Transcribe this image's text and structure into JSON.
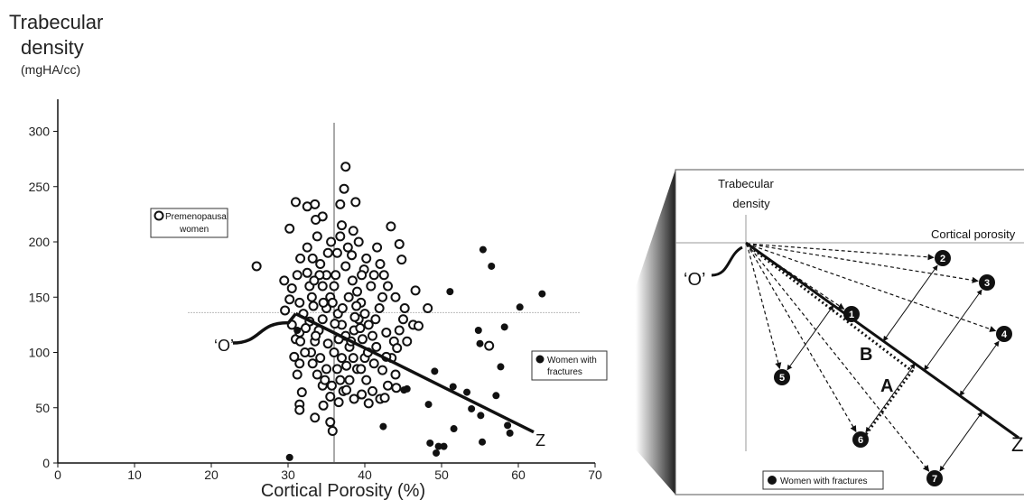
{
  "chart_data": [
    {
      "type": "scatter",
      "ylabel_line1": "Trabecular",
      "ylabel_line2": "density",
      "ylabel_unit": "(mgHA/cc)",
      "xlabel": "Cortical Porosity (%)",
      "xlim": [
        0,
        70
      ],
      "ylim": [
        0,
        320
      ],
      "xticks": [
        "0",
        "10",
        "20",
        "30",
        "40",
        "50",
        "60",
        "70"
      ],
      "yticks": [
        "0",
        "50",
        "100",
        "150",
        "200",
        "250",
        "300"
      ],
      "ref_x": 36,
      "ref_y": 136,
      "origin_label": "‘O’",
      "end_label": "Z",
      "trend_line": [
        [
          31,
          135
        ],
        [
          62,
          28
        ]
      ],
      "series": [
        {
          "name": "Premenopausal women",
          "legend_line1": "Premenopausal",
          "legend_line2": "women",
          "marker": "open-circle",
          "points": [
            [
              33.5,
              234
            ],
            [
              32.5,
              232
            ],
            [
              34.5,
              223
            ],
            [
              33.6,
              220
            ],
            [
              31,
              236
            ],
            [
              36.8,
              234
            ],
            [
              37.3,
              248
            ],
            [
              37.5,
              268
            ],
            [
              38.8,
              236
            ],
            [
              30.2,
              212
            ],
            [
              25.9,
              178
            ],
            [
              29.5,
              165
            ],
            [
              30.2,
              148
            ],
            [
              29.6,
              138
            ],
            [
              30.5,
              125
            ],
            [
              31,
              112
            ],
            [
              30.8,
              96
            ],
            [
              31.5,
              90
            ],
            [
              31.2,
              80
            ],
            [
              31.8,
              64
            ],
            [
              31.5,
              53
            ],
            [
              33.5,
              41
            ],
            [
              35.5,
              37
            ],
            [
              35.8,
              29
            ],
            [
              33,
              100
            ],
            [
              33.5,
              110
            ],
            [
              34,
              120
            ],
            [
              34.5,
              130
            ],
            [
              35,
              140
            ],
            [
              35.5,
              150
            ],
            [
              36,
              160
            ],
            [
              36.2,
              170
            ],
            [
              34.2,
              180
            ],
            [
              35.2,
              190
            ],
            [
              33.2,
              185
            ],
            [
              32.5,
              172
            ],
            [
              32.8,
              160
            ],
            [
              33.1,
              150
            ],
            [
              33.3,
              142
            ],
            [
              34.6,
              145
            ],
            [
              35.8,
              145
            ],
            [
              36.5,
              135
            ],
            [
              37,
              125
            ],
            [
              37.5,
              115
            ],
            [
              38,
              105
            ],
            [
              38.5,
              95
            ],
            [
              39,
              85
            ],
            [
              38,
              75
            ],
            [
              37.2,
              65
            ],
            [
              36.6,
              55
            ],
            [
              35.5,
              60
            ],
            [
              34.5,
              70
            ],
            [
              33.8,
              80
            ],
            [
              33.2,
              90
            ],
            [
              32.2,
              100
            ],
            [
              31.6,
              110
            ],
            [
              31.5,
              118
            ],
            [
              32.8,
              128
            ],
            [
              34.5,
              160
            ],
            [
              35,
              170
            ],
            [
              37.5,
              178
            ],
            [
              38.4,
              165
            ],
            [
              39,
              155
            ],
            [
              39.5,
              145
            ],
            [
              40,
              135
            ],
            [
              40.5,
              125
            ],
            [
              41,
              115
            ],
            [
              41.5,
              105
            ],
            [
              40,
              95
            ],
            [
              39.5,
              85
            ],
            [
              40.2,
              75
            ],
            [
              41,
              65
            ],
            [
              42,
              58
            ],
            [
              43,
              70
            ],
            [
              44,
              80
            ],
            [
              43.5,
              95
            ],
            [
              43.8,
              110
            ],
            [
              44.5,
              120
            ],
            [
              45,
              130
            ],
            [
              45.2,
              140
            ],
            [
              44,
              150
            ],
            [
              43,
              160
            ],
            [
              42.5,
              170
            ],
            [
              42,
              180
            ],
            [
              41.6,
              195
            ],
            [
              40.2,
              185
            ],
            [
              39.2,
              200
            ],
            [
              38.5,
              210
            ],
            [
              37,
              215
            ],
            [
              35.6,
              200
            ],
            [
              36.4,
              190
            ],
            [
              37.8,
              195
            ],
            [
              33.8,
              205
            ],
            [
              32.5,
              195
            ],
            [
              31.6,
              185
            ],
            [
              31.2,
              170
            ],
            [
              30.5,
              158
            ],
            [
              31.5,
              145
            ],
            [
              32,
              135
            ],
            [
              32.3,
              122
            ],
            [
              36,
              100
            ],
            [
              36.4,
              85
            ],
            [
              37,
              95
            ],
            [
              37.6,
              88
            ],
            [
              38.2,
              110
            ],
            [
              38.6,
              120
            ],
            [
              39.2,
              130
            ],
            [
              39.7,
              112
            ],
            [
              40.4,
              100
            ],
            [
              41.2,
              90
            ],
            [
              42.3,
              84
            ],
            [
              42.8,
              96
            ],
            [
              41.9,
              140
            ],
            [
              42.3,
              150
            ],
            [
              40.8,
              160
            ],
            [
              39.9,
              175
            ],
            [
              39.6,
              170
            ],
            [
              41.2,
              170
            ],
            [
              43.4,
              214
            ],
            [
              44.5,
              198
            ],
            [
              44.8,
              184
            ],
            [
              46.6,
              156
            ],
            [
              48.2,
              140
            ],
            [
              46.3,
              125
            ],
            [
              45.5,
              110
            ],
            [
              47,
              124
            ],
            [
              44.1,
              68
            ],
            [
              42.6,
              59
            ],
            [
              40.5,
              54
            ],
            [
              39.6,
              62
            ],
            [
              38.6,
              58
            ],
            [
              37.6,
              66
            ],
            [
              34.6,
              52
            ],
            [
              31.5,
              48
            ],
            [
              36.1,
              126
            ],
            [
              37.1,
              140
            ],
            [
              33.6,
              115
            ],
            [
              34.2,
              95
            ],
            [
              35,
              85
            ],
            [
              34.8,
              75
            ],
            [
              35.7,
              70
            ],
            [
              36.8,
              75
            ],
            [
              35.2,
              108
            ],
            [
              36.6,
              112
            ],
            [
              38.9,
              142
            ],
            [
              37.9,
              150
            ],
            [
              38.7,
              132
            ],
            [
              39.4,
              122
            ],
            [
              34.1,
              170
            ],
            [
              33.4,
              165
            ],
            [
              36.8,
              205
            ],
            [
              38.3,
              188
            ],
            [
              41.4,
              130
            ],
            [
              42.8,
              118
            ],
            [
              56.2,
              106
            ],
            [
              44.2,
              104
            ]
          ]
        },
        {
          "name": "Women with fractures",
          "legend_line1": "Women with",
          "legend_line2": "fractures",
          "marker": "filled-circle",
          "points": [
            [
              31.2,
              120
            ],
            [
              30.2,
              5
            ],
            [
              42.4,
              33
            ],
            [
              45.1,
              66
            ],
            [
              45.5,
              67
            ],
            [
              48.3,
              53
            ],
            [
              49.1,
              83
            ],
            [
              48.5,
              18
            ],
            [
              49.3,
              9
            ],
            [
              49.6,
              15
            ],
            [
              50.3,
              15
            ],
            [
              51.1,
              155
            ],
            [
              51.5,
              69
            ],
            [
              51.6,
              31
            ],
            [
              53.3,
              64
            ],
            [
              53.9,
              49
            ],
            [
              54.8,
              120
            ],
            [
              55,
              108
            ],
            [
              55.1,
              43
            ],
            [
              55.3,
              19
            ],
            [
              55.4,
              193
            ],
            [
              56.5,
              178
            ],
            [
              57.1,
              61
            ],
            [
              58.2,
              123
            ],
            [
              57.7,
              87
            ],
            [
              58.6,
              34
            ],
            [
              58.9,
              27
            ],
            [
              60.2,
              141
            ],
            [
              63.1,
              153
            ]
          ]
        }
      ]
    },
    {
      "type": "diagram",
      "ylabel_line1": "Trabecular",
      "ylabel_line2": "density",
      "xlabel": "Cortical porosity",
      "origin_label": "‘O’",
      "end_label": "Z",
      "label_a": "A",
      "label_b": "B",
      "legend": "Women with fractures",
      "points": [
        {
          "n": "1",
          "x": 943,
          "y": 348
        },
        {
          "n": "2",
          "x": 1044,
          "y": 286
        },
        {
          "n": "3",
          "x": 1093,
          "y": 313
        },
        {
          "n": "4",
          "x": 1112,
          "y": 370
        },
        {
          "n": "5",
          "x": 866,
          "y": 418
        },
        {
          "n": "6",
          "x": 953,
          "y": 487
        },
        {
          "n": "7",
          "x": 1035,
          "y": 530
        }
      ]
    }
  ]
}
